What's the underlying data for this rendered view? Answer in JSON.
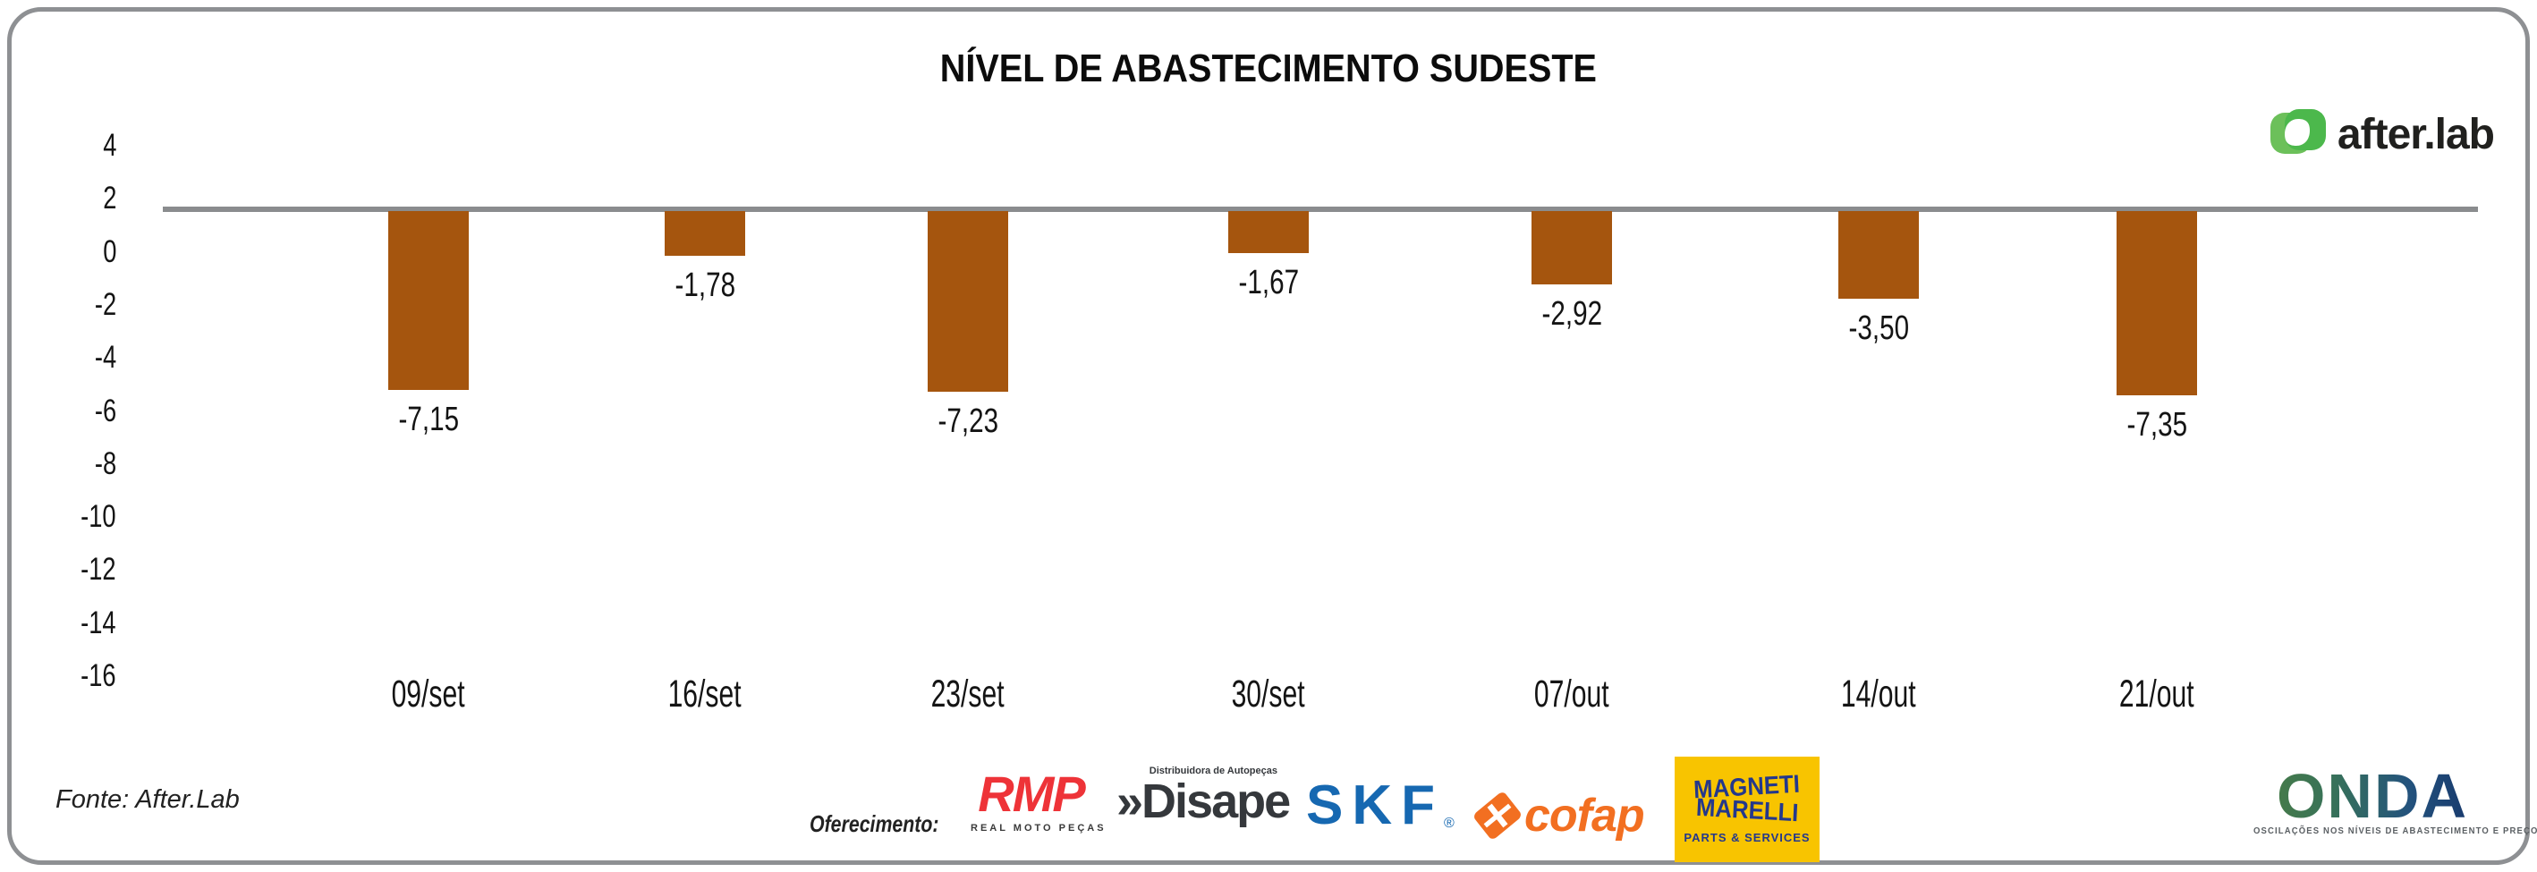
{
  "title": "NÍVEL DE ABASTECIMENTO SUDESTE",
  "brand": {
    "name": "after.lab",
    "icon": "afterlab-leaves-icon",
    "green_light": "#6CC05A",
    "green_dark": "#4CB84C"
  },
  "chart_data": {
    "type": "bar",
    "title": "NÍVEL DE ABASTECIMENTO SUDESTE",
    "categories": [
      "09/set",
      "16/set",
      "23/set",
      "30/set",
      "07/out",
      "14/out",
      "21/out"
    ],
    "values": [
      -7.15,
      -1.78,
      -7.23,
      -1.67,
      -2.92,
      -3.5,
      -7.35
    ],
    "value_labels": [
      "-7,15",
      "-1,78",
      "-7,23",
      "-1,67",
      "-2,92",
      "-3,50",
      "-7,35"
    ],
    "y_ticks": [
      "4",
      "2",
      "0",
      "-2",
      "-4",
      "-6",
      "-8",
      "-10",
      "-12",
      "-14",
      "-16"
    ],
    "ylim": [
      -16,
      4
    ],
    "xlabel": "",
    "ylabel": "",
    "grid": false,
    "legend": "none",
    "bar_color": "#A5550E",
    "baseline_color": "#8A8C8E"
  },
  "footer": {
    "source": "Fonte: After.Lab",
    "sponsor_label": "Oferecimento:",
    "sponsors": {
      "rmp": {
        "name": "RMP",
        "subtitle": "REAL MOTO PEÇAS",
        "color": "#EE3338"
      },
      "disape": {
        "prefix": "»",
        "name": "Disape",
        "subtitle": "Distribuidora de Autopeças",
        "color": "#35383C"
      },
      "skf": {
        "name": "SKF",
        "registered": "®",
        "color": "#1668B1"
      },
      "cofap": {
        "name": "cofap",
        "color": "#F26F21"
      },
      "magneti": {
        "line1": "MAGNETI",
        "line2": "MARELLI",
        "subtitle": "PARTS & SERVICES",
        "bg": "#F8C400",
        "color": "#24388C"
      }
    },
    "onda": {
      "name": "ONDA",
      "tagline": "OSCILAÇÕES NOS NÍVEIS DE ABASTECIMENTO E PREÇOS"
    }
  }
}
